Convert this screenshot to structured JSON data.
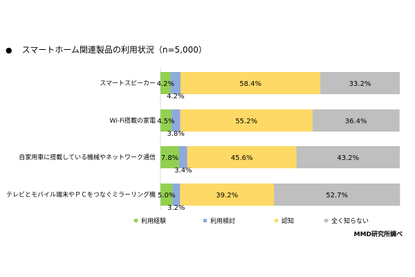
{
  "chart_data": {
    "type": "bar",
    "orientation": "horizontal",
    "stacked": true,
    "title": "スマートホーム関連製品の利用状況（n=5,000）",
    "categories": [
      "スマートスピーカー",
      "Wi-Fi搭載の家電",
      "自家用車に搭載している機械やネットワーク通信",
      "テレビとモバイル端末やＰＣをつなぐミラーリング機"
    ],
    "series": [
      {
        "name": "利用経験",
        "color": "#92d050",
        "values": [
          4.2,
          4.5,
          7.8,
          5.0
        ],
        "labels": [
          "4.2%",
          "4.5%",
          "7.8%",
          "5.0%"
        ]
      },
      {
        "name": "利用検討",
        "color": "#8eaadb",
        "values": [
          4.2,
          3.8,
          3.4,
          3.2
        ],
        "labels": [
          "4.2%",
          "3.8%",
          "3.4%",
          "3.2%"
        ]
      },
      {
        "name": "認知",
        "color": "#ffd966",
        "values": [
          58.4,
          55.2,
          45.6,
          39.2
        ],
        "labels": [
          "58.4%",
          "55.2%",
          "45.6%",
          "39.2%"
        ]
      },
      {
        "name": "全く知らない",
        "color": "#bfbfbf",
        "values": [
          33.2,
          36.4,
          43.2,
          52.7
        ],
        "labels": [
          "33.2%",
          "36.4%",
          "43.2%",
          "52.7%"
        ]
      }
    ],
    "xlim": [
      0,
      100
    ],
    "legend_position": "bottom",
    "grid": false
  },
  "source": "MMD研究所調べ"
}
